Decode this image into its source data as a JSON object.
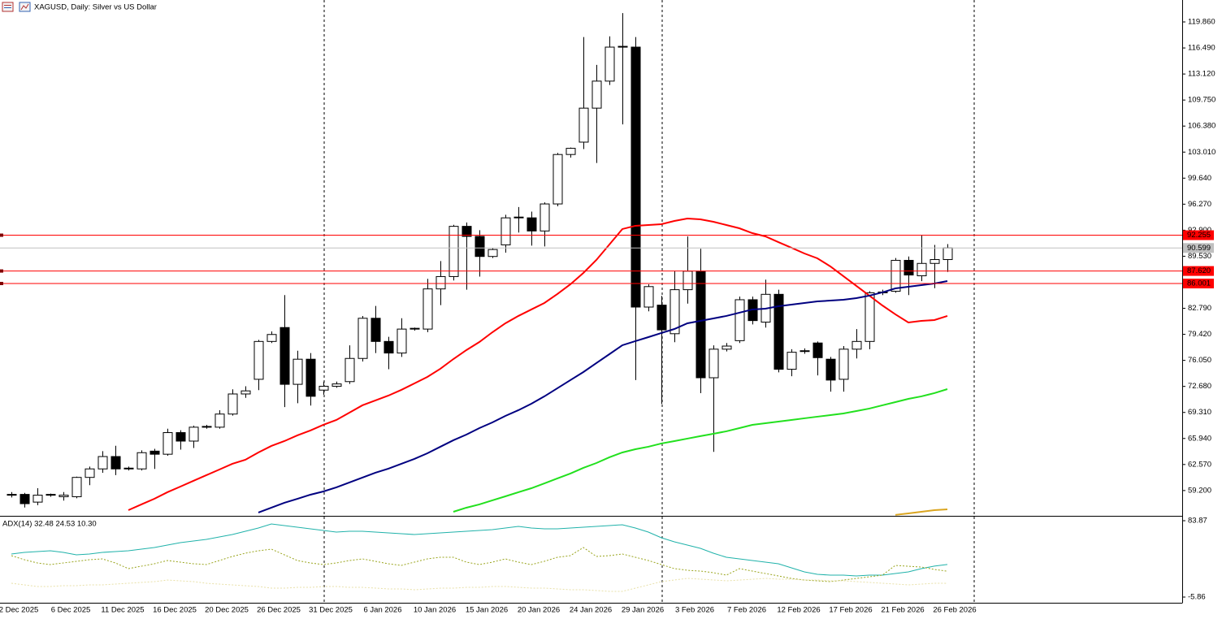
{
  "chart_data": [
    {
      "type": "candlestick",
      "title": "XAGUSD, Daily: Silver vs US Dollar",
      "categories": [
        "2 Dec 2025",
        null,
        null,
        null,
        "6 Dec 2025",
        null,
        null,
        null,
        "11 Dec 2025",
        null,
        null,
        null,
        "16 Dec 2025",
        null,
        null,
        null,
        "20 Dec 2025",
        null,
        null,
        null,
        "26 Dec 2025",
        null,
        null,
        null,
        "31 Dec 2025",
        null,
        null,
        null,
        "6 Jan 2026",
        null,
        null,
        null,
        "10 Jan 2026",
        null,
        null,
        null,
        "15 Jan 2026",
        null,
        null,
        null,
        "20 Jan 2026",
        null,
        null,
        null,
        "24 Jan 2026",
        null,
        null,
        null,
        "29 Jan 2026",
        null,
        null,
        null,
        "3 Feb 2026",
        null,
        null,
        null,
        "7 Feb 2026",
        null,
        null,
        null,
        "12 Feb 2026",
        null,
        null,
        null,
        "17 Feb 2026",
        null,
        null,
        null,
        "21 Feb 2026",
        null,
        null,
        null,
        "26 Feb 2026"
      ],
      "open": [
        58.6,
        58.7,
        57.7,
        58.6,
        58.4,
        58.4,
        60.9,
        62.0,
        63.6,
        62.0,
        62.0,
        64.3,
        63.9,
        66.7,
        65.6,
        67.4,
        67.4,
        69.1,
        71.7,
        73.6,
        78.5,
        80.3,
        72.95,
        76.2,
        72.2,
        72.7,
        73.3,
        76.3,
        81.5,
        78.5,
        77.0,
        80.1,
        80.1,
        85.3,
        86.9,
        93.4,
        92.1,
        89.5,
        91.0,
        94.5,
        94.5,
        92.8,
        96.3,
        102.7,
        104.3,
        108.7,
        112.2,
        116.6,
        116.6,
        82.95,
        83.2,
        79.5,
        85.2,
        87.6,
        73.8,
        77.5,
        78.6,
        83.9,
        81.0,
        84.6,
        74.9,
        77.2,
        78.3,
        76.2,
        73.6,
        77.5,
        78.5,
        84.8,
        85.0,
        89.0,
        87.0,
        88.6,
        89.1
      ],
      "high": [
        59.0,
        58.9,
        59.5,
        58.8,
        59.0,
        61.0,
        62.3,
        64.3,
        65.0,
        62.3,
        64.4,
        64.6,
        67.2,
        67.0,
        67.6,
        67.7,
        69.6,
        72.3,
        72.7,
        78.7,
        79.8,
        84.5,
        77.3,
        77.0,
        73.3,
        73.3,
        78.0,
        81.8,
        83.1,
        79.1,
        81.5,
        80.3,
        86.6,
        88.9,
        93.6,
        93.9,
        92.9,
        90.6,
        94.9,
        95.9,
        95.3,
        96.5,
        102.9,
        103.6,
        117.9,
        114.3,
        118.0,
        121.0,
        117.9,
        85.9,
        84.4,
        87.6,
        92.1,
        90.5,
        78.0,
        78.3,
        84.3,
        84.3,
        86.5,
        85.2,
        77.5,
        77.6,
        78.5,
        76.5,
        77.9,
        80.1,
        85.0,
        85.2,
        89.3,
        89.5,
        92.3,
        91.0,
        91.1
      ],
      "low": [
        58.3,
        57.0,
        57.3,
        58.4,
        57.9,
        58.2,
        59.9,
        61.5,
        61.2,
        61.8,
        61.8,
        62.0,
        63.7,
        64.5,
        64.7,
        67.2,
        67.2,
        68.9,
        71.2,
        72.2,
        78.3,
        70.0,
        70.5,
        70.2,
        71.6,
        72.5,
        73.0,
        75.9,
        77.0,
        74.9,
        76.5,
        79.9,
        79.7,
        83.2,
        86.4,
        85.2,
        86.9,
        89.3,
        90.0,
        92.6,
        90.9,
        90.8,
        96.0,
        102.3,
        103.4,
        101.6,
        111.7,
        106.6,
        73.5,
        82.4,
        70.4,
        78.4,
        83.4,
        71.8,
        64.2,
        77.2,
        78.3,
        80.7,
        80.3,
        74.5,
        74.0,
        76.9,
        74.1,
        72.0,
        72.0,
        76.3,
        77.5,
        84.5,
        84.8,
        84.5,
        86.3,
        85.4,
        87.5
      ],
      "close": [
        58.7,
        57.5,
        58.6,
        58.7,
        58.6,
        60.9,
        62.0,
        63.6,
        62.0,
        62.1,
        64.1,
        63.9,
        66.7,
        65.6,
        67.4,
        67.5,
        69.1,
        71.7,
        72.1,
        78.5,
        79.4,
        72.95,
        76.2,
        71.4,
        72.7,
        73.0,
        76.3,
        81.5,
        78.5,
        77.0,
        80.1,
        80.2,
        85.3,
        86.9,
        93.4,
        92.1,
        89.5,
        90.4,
        94.5,
        94.6,
        92.8,
        96.3,
        102.7,
        103.5,
        108.7,
        112.2,
        116.6,
        116.7,
        82.95,
        85.6,
        80.0,
        85.2,
        87.6,
        73.8,
        77.5,
        77.9,
        83.9,
        81.2,
        84.6,
        74.9,
        77.1,
        77.3,
        76.4,
        73.5,
        77.5,
        78.5,
        84.8,
        84.9,
        89.0,
        87.1,
        88.6,
        89.1,
        90.6
      ],
      "up_color": "#ffffff",
      "down_color": "#000000",
      "series": [
        {
          "color": "#ff0000",
          "values": [
            null,
            null,
            null,
            null,
            null,
            null,
            null,
            null,
            null,
            56.66,
            57.4,
            58.13,
            58.98,
            59.71,
            60.45,
            61.19,
            61.92,
            62.66,
            63.18,
            64.13,
            64.97,
            65.6,
            66.34,
            66.97,
            67.71,
            68.34,
            69.28,
            70.23,
            70.86,
            71.49,
            72.23,
            73.07,
            73.91,
            74.96,
            76.22,
            77.38,
            78.43,
            79.69,
            80.85,
            81.8,
            82.64,
            83.48,
            84.64,
            85.9,
            87.37,
            89.05,
            91.05,
            93.05,
            93.47,
            93.57,
            93.68,
            94.1,
            94.41,
            94.31,
            93.99,
            93.57,
            93.15,
            92.52,
            92.1,
            91.36,
            90.63,
            89.89,
            89.26,
            88.21,
            86.95,
            85.69,
            84.43,
            83.16,
            82.01,
            80.95,
            81.16,
            81.27,
            81.8
          ]
        },
        {
          "color": "#000080",
          "values": [
            null,
            null,
            null,
            null,
            null,
            null,
            null,
            null,
            null,
            null,
            null,
            null,
            null,
            null,
            null,
            null,
            null,
            null,
            null,
            56.35,
            56.98,
            57.61,
            58.13,
            58.66,
            59.08,
            59.61,
            60.24,
            60.87,
            61.5,
            62.03,
            62.66,
            63.29,
            64.02,
            64.87,
            65.71,
            66.44,
            67.28,
            68.02,
            68.86,
            69.6,
            70.44,
            71.39,
            72.44,
            73.49,
            74.54,
            75.7,
            76.85,
            78.01,
            78.54,
            79.06,
            79.59,
            80.11,
            80.85,
            81.16,
            81.48,
            81.8,
            82.22,
            82.64,
            82.74,
            83.06,
            83.27,
            83.48,
            83.69,
            83.79,
            83.9,
            84.11,
            84.43,
            84.85,
            85.37,
            85.58,
            85.79,
            86.0,
            86.32
          ]
        },
        {
          "color": "#22e01e",
          "values": [
            null,
            null,
            null,
            null,
            null,
            null,
            null,
            null,
            null,
            null,
            null,
            null,
            null,
            null,
            null,
            null,
            null,
            null,
            null,
            null,
            null,
            null,
            null,
            null,
            null,
            null,
            null,
            null,
            null,
            null,
            null,
            null,
            null,
            null,
            56.45,
            56.98,
            57.4,
            57.93,
            58.45,
            58.98,
            59.5,
            60.13,
            60.77,
            61.4,
            62.13,
            62.76,
            63.5,
            64.13,
            64.55,
            64.87,
            65.29,
            65.6,
            65.92,
            66.24,
            66.55,
            66.87,
            67.28,
            67.7,
            67.91,
            68.12,
            68.33,
            68.55,
            68.76,
            68.97,
            69.18,
            69.49,
            69.81,
            70.23,
            70.65,
            71.07,
            71.39,
            71.81,
            72.33
          ]
        },
        {
          "color": "#daa520",
          "values": [
            null,
            null,
            null,
            null,
            null,
            null,
            null,
            null,
            null,
            null,
            null,
            null,
            null,
            null,
            null,
            null,
            null,
            null,
            null,
            null,
            null,
            null,
            null,
            null,
            null,
            null,
            null,
            null,
            null,
            null,
            null,
            null,
            null,
            null,
            null,
            null,
            null,
            null,
            null,
            null,
            null,
            null,
            null,
            null,
            null,
            null,
            null,
            null,
            null,
            null,
            null,
            null,
            null,
            null,
            null,
            null,
            null,
            null,
            null,
            null,
            null,
            null,
            null,
            null,
            null,
            null,
            null,
            null,
            56.05,
            56.24,
            56.45,
            56.66,
            56.77
          ]
        }
      ],
      "hlines": [
        92.255,
        {
          "value": 87.62,
          "label": "87.620"
        },
        86.001
      ],
      "hline_color": "#ff0000",
      "price_line": 90.599,
      "price_line_color": "#c0c0c0",
      "ylim": [
        56.03,
        122.7
      ],
      "yticks": [
        {
          "value": 119.86,
          "label": "119.860"
        },
        {
          "value": 116.49,
          "label": "116.490"
        },
        {
          "value": 113.12,
          "label": "113.120"
        },
        {
          "value": 109.75,
          "label": "109.750"
        },
        {
          "value": 106.38,
          "label": "106.380"
        },
        {
          "value": 103.01,
          "label": "103.010"
        },
        {
          "value": 99.64,
          "label": "99.640"
        },
        {
          "value": 96.27,
          "label": "96.270"
        },
        {
          "value": 92.9,
          "label": "92.900"
        },
        {
          "value": 89.53,
          "label": "89.530"
        },
        {
          "value": 86.16,
          "label": "86.160"
        },
        {
          "value": 82.79,
          "label": "82.790"
        },
        {
          "value": 79.42,
          "label": "79.420"
        },
        {
          "value": 76.05,
          "label": "76.050"
        },
        {
          "value": 72.68,
          "label": "72.680"
        },
        {
          "value": 69.31,
          "label": "69.310"
        },
        {
          "value": 65.94,
          "label": "65.940"
        },
        {
          "value": 62.57,
          "label": "62.570"
        },
        {
          "value": 59.2,
          "label": "59.200"
        }
      ],
      "grid": false
    },
    {
      "type": "line",
      "title": "ADX(14) 32.48 24.53 10.30",
      "series": [
        {
          "color": "#20b2aa",
          "dashed": false,
          "values": [
            44.73,
            46.64,
            47.6,
            48.55,
            46.64,
            43.78,
            44.73,
            46.64,
            47.6,
            48.55,
            50.46,
            52.37,
            55.23,
            58.1,
            60.01,
            61.92,
            64.78,
            67.64,
            71.46,
            75.28,
            80.05,
            78.14,
            76.23,
            74.32,
            72.41,
            70.51,
            71.46,
            71.46,
            70.51,
            69.55,
            68.6,
            67.64,
            68.6,
            69.55,
            70.51,
            71.46,
            72.41,
            73.37,
            75.28,
            77.19,
            75.28,
            74.32,
            74.32,
            75.28,
            76.23,
            77.19,
            78.14,
            79.1,
            75.28,
            70.51,
            63.82,
            59.05,
            55.23,
            51.41,
            45.69,
            40.91,
            39.0,
            37.09,
            35.18,
            33.28,
            28.5,
            23.73,
            20.87,
            19.91,
            19.91,
            18.96,
            19.91,
            19.91,
            21.82,
            23.73,
            27.55,
            30.5,
            32.48
          ]
        },
        {
          "color": "#9aa51e",
          "dashed": true,
          "values": [
            42.82,
            38.05,
            34.23,
            32.32,
            34.23,
            36.14,
            38.05,
            39.0,
            34.23,
            27.55,
            30.41,
            33.28,
            37.09,
            35.18,
            33.28,
            32.32,
            37.09,
            41.87,
            45.69,
            48.55,
            50.46,
            43.78,
            37.09,
            34.23,
            32.32,
            34.23,
            37.09,
            39.0,
            36.14,
            33.28,
            31.37,
            35.18,
            39.0,
            40.91,
            40.91,
            35.18,
            32.32,
            35.18,
            39.0,
            35.18,
            32.32,
            36.14,
            40.91,
            42.82,
            52.37,
            41.87,
            42.82,
            44.73,
            40.91,
            37.09,
            32.32,
            27.55,
            25.64,
            24.69,
            22.78,
            19.91,
            27.55,
            24.69,
            21.82,
            18.96,
            16.09,
            14.18,
            13.23,
            12.27,
            14.18,
            16.09,
            18.0,
            19.91,
            31.37,
            30.41,
            29.46,
            26.6,
            24.53
          ]
        },
        {
          "color": "#e8e0a8",
          "dashed": true,
          "values": [
            10.37,
            8.46,
            6.55,
            6.55,
            7.5,
            7.5,
            8.46,
            8.46,
            9.41,
            10.37,
            11.32,
            12.27,
            14.18,
            13.23,
            12.27,
            10.37,
            9.41,
            8.46,
            7.5,
            6.55,
            4.64,
            4.64,
            5.59,
            5.59,
            6.55,
            6.55,
            5.59,
            5.59,
            4.64,
            3.68,
            3.68,
            2.73,
            3.68,
            4.64,
            4.64,
            5.59,
            5.59,
            6.55,
            6.55,
            5.59,
            4.64,
            4.64,
            3.68,
            2.73,
            2.73,
            1.78,
            0.82,
            0.82,
            4.64,
            8.46,
            12.27,
            14.18,
            16.09,
            15.14,
            14.18,
            13.23,
            14.18,
            15.14,
            16.09,
            15.14,
            15.14,
            14.18,
            14.18,
            13.23,
            13.23,
            12.27,
            11.32,
            10.37,
            9.41,
            8.46,
            9.41,
            10.37,
            10.3
          ]
        }
      ],
      "ylim": [
        -12.54,
        88.64
      ],
      "yticks": [
        83.87,
        -5.86
      ]
    }
  ]
}
